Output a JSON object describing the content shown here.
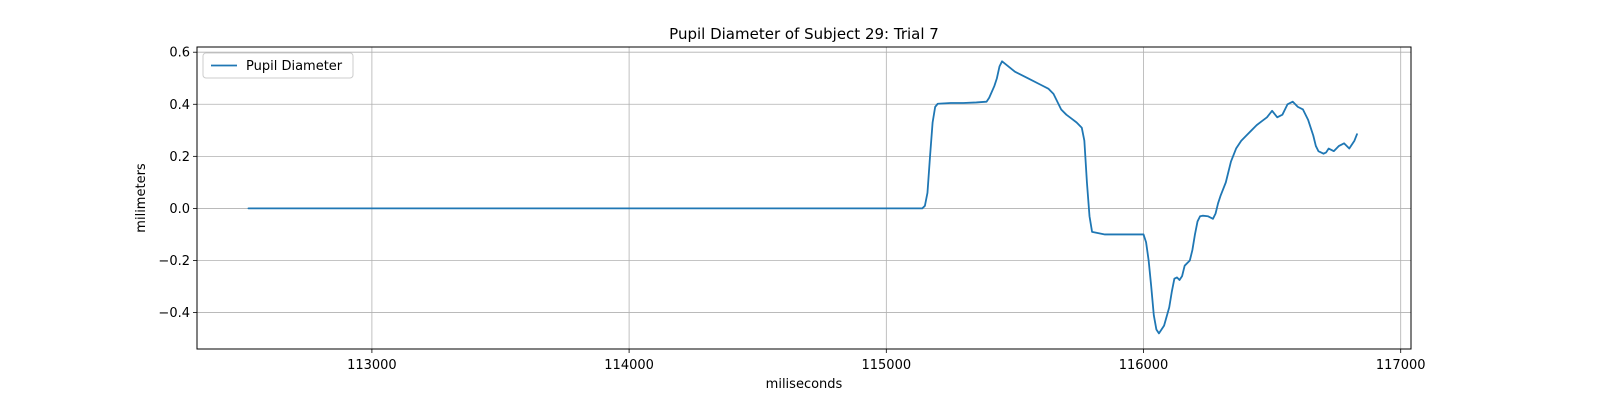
{
  "chart_data": {
    "type": "line",
    "title": "Pupil Diameter of Subject 29: Trial 7",
    "xlabel": "miliseconds",
    "ylabel": "milimeters",
    "xlim": [
      112320,
      117040
    ],
    "ylim": [
      -0.54,
      0.62
    ],
    "xticks": [
      113000,
      114000,
      115000,
      116000,
      117000
    ],
    "yticks": [
      -0.4,
      -0.2,
      0.0,
      0.2,
      0.4,
      0.6
    ],
    "xtick_labels": [
      "113000",
      "114000",
      "115000",
      "116000",
      "117000"
    ],
    "ytick_labels": [
      "−0.4",
      "−0.2",
      "0.0",
      "0.2",
      "0.4",
      "0.6"
    ],
    "grid": true,
    "legend": {
      "placement": "upper-left",
      "entries": [
        "Pupil Diameter"
      ]
    },
    "series": [
      {
        "name": "Pupil Diameter",
        "color": "#1f77b4",
        "x": [
          112520,
          113000,
          114000,
          115000,
          115100,
          115140,
          115150,
          115160,
          115170,
          115180,
          115190,
          115200,
          115250,
          115300,
          115350,
          115390,
          115400,
          115420,
          115430,
          115440,
          115450,
          115500,
          115550,
          115600,
          115630,
          115650,
          115680,
          115700,
          115720,
          115740,
          115750,
          115760,
          115770,
          115780,
          115790,
          115800,
          115850,
          115900,
          115950,
          115980,
          116000,
          116010,
          116020,
          116030,
          116040,
          116050,
          116060,
          116080,
          116100,
          116110,
          116120,
          116130,
          116140,
          116150,
          116160,
          116180,
          116190,
          116200,
          116210,
          116220,
          116230,
          116250,
          116270,
          116280,
          116290,
          116300,
          116320,
          116340,
          116360,
          116380,
          116400,
          116420,
          116440,
          116460,
          116480,
          116500,
          116520,
          116540,
          116560,
          116580,
          116600,
          116620,
          116640,
          116660,
          116670,
          116680,
          116700,
          116710,
          116720,
          116740,
          116760,
          116780,
          116800,
          116820,
          116830
        ],
        "y": [
          0.0,
          0.0,
          0.0,
          0.0,
          0.0,
          0.0,
          0.01,
          0.06,
          0.2,
          0.33,
          0.39,
          0.402,
          0.405,
          0.405,
          0.407,
          0.41,
          0.425,
          0.47,
          0.5,
          0.545,
          0.565,
          0.525,
          0.5,
          0.475,
          0.46,
          0.44,
          0.38,
          0.36,
          0.345,
          0.33,
          0.32,
          0.31,
          0.26,
          0.1,
          -0.03,
          -0.09,
          -0.1,
          -0.1,
          -0.1,
          -0.1,
          -0.1,
          -0.13,
          -0.2,
          -0.3,
          -0.41,
          -0.465,
          -0.48,
          -0.45,
          -0.38,
          -0.32,
          -0.27,
          -0.265,
          -0.275,
          -0.26,
          -0.22,
          -0.2,
          -0.16,
          -0.1,
          -0.05,
          -0.03,
          -0.028,
          -0.03,
          -0.04,
          -0.02,
          0.02,
          0.05,
          0.1,
          0.18,
          0.23,
          0.26,
          0.28,
          0.3,
          0.32,
          0.335,
          0.35,
          0.375,
          0.35,
          0.36,
          0.4,
          0.41,
          0.39,
          0.38,
          0.34,
          0.28,
          0.24,
          0.22,
          0.21,
          0.215,
          0.23,
          0.22,
          0.24,
          0.25,
          0.23,
          0.26,
          0.285
        ]
      }
    ]
  }
}
